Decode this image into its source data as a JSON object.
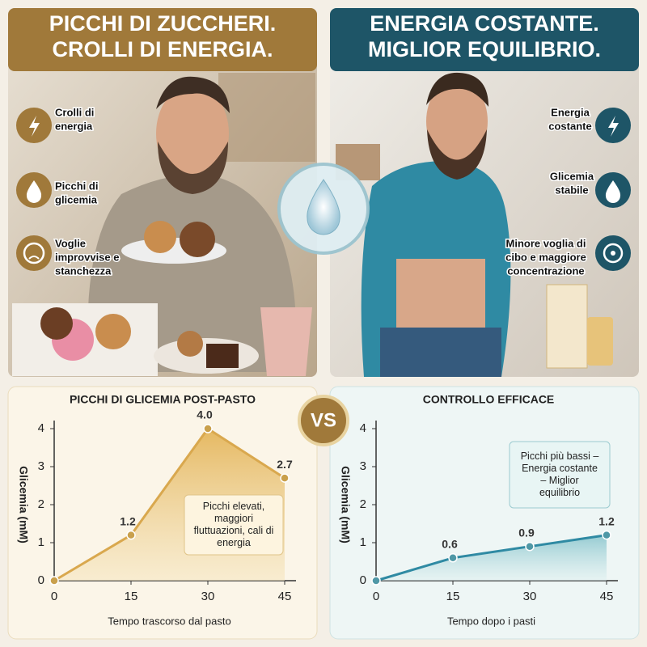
{
  "panels": [
    {
      "header": [
        "PICCHI DI ZUCCHERI.",
        "CROLLI DI ENERGIA."
      ],
      "features": [
        [
          "Crolli di",
          "energia"
        ],
        [
          "Picchi di",
          "glicemia"
        ],
        [
          "Voglie",
          "improvvise e",
          "stanchezza"
        ]
      ]
    },
    {
      "header": [
        "ENERGIA COSTANTE.",
        "MIGLIOR EQUILIBRIO."
      ],
      "features": [
        [
          "Energia",
          "costante"
        ],
        [
          "Glicemia",
          "stabile"
        ],
        [
          "Minore voglia di",
          "cibo e maggiore",
          "concentrazione"
        ]
      ]
    }
  ],
  "vs": "VS",
  "chart_data": [
    {
      "type": "line",
      "title": "PICCHI DI GLICEMIA POST-PASTO",
      "x_label": "Tempo trascorso dal pasto",
      "y_label": "Glicemia (mM)",
      "x": [
        0,
        15,
        30,
        45
      ],
      "values": [
        0,
        1.2,
        4,
        2.7
      ],
      "value_labels": [
        null,
        "1.2",
        "4.0",
        "2.7"
      ],
      "color": "#c9a04c",
      "area": true,
      "xlim": [
        0,
        45
      ],
      "ylim": [
        0,
        4
      ],
      "xticks": [
        0,
        15,
        30,
        45
      ],
      "yticks": [
        0,
        1,
        2,
        3,
        4
      ],
      "annotation": [
        "Picchi elevati,",
        "maggiori",
        "fluttuazioni, cali di",
        "energia"
      ]
    },
    {
      "type": "line",
      "title": "CONTROLLO EFFICACE",
      "x_label": "Tempo dopo i pasti",
      "y_label": "Glicemia (mM)",
      "x": [
        0,
        15,
        30,
        45
      ],
      "values": [
        0,
        0.6,
        0.9,
        1.2
      ],
      "value_labels": [
        null,
        "0.6",
        "0.9",
        "1.2"
      ],
      "color": "#4f98a6",
      "area": true,
      "xlim": [
        0,
        45
      ],
      "ylim": [
        0,
        4
      ],
      "xticks": [
        0,
        15,
        30,
        45
      ],
      "yticks": [
        0,
        1,
        2,
        3,
        4
      ],
      "annotation": [
        "Picchi più bassi –",
        "Energia costante",
        "– Miglior",
        "equilibrio"
      ]
    }
  ]
}
